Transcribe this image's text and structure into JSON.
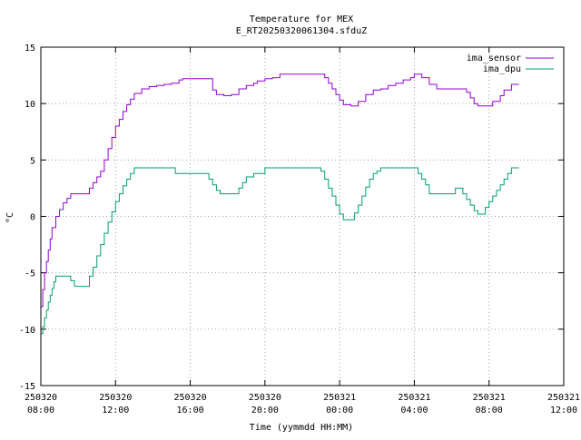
{
  "chart_data": {
    "type": "line",
    "title": "Temperature for MEX",
    "subtitle": "E_RT20250320061304.sfduZ",
    "xlabel": "Time (yymmdd HH:MM)",
    "ylabel": "°C",
    "x_unit": "hours since 250320 00:00",
    "xlim": [
      8,
      36
    ],
    "ylim": [
      -15,
      15
    ],
    "grid": true,
    "legend_position": "top-right",
    "x_ticks": [
      {
        "value": 8,
        "date": "250320",
        "time": "08:00"
      },
      {
        "value": 12,
        "date": "250320",
        "time": "12:00"
      },
      {
        "value": 16,
        "date": "250320",
        "time": "16:00"
      },
      {
        "value": 20,
        "date": "250320",
        "time": "20:00"
      },
      {
        "value": 24,
        "date": "250321",
        "time": "00:00"
      },
      {
        "value": 28,
        "date": "250321",
        "time": "04:00"
      },
      {
        "value": 32,
        "date": "250321",
        "time": "08:00"
      },
      {
        "value": 36,
        "date": "250321",
        "time": "12:00"
      }
    ],
    "y_ticks": [
      {
        "value": -15,
        "label": "-15"
      },
      {
        "value": -10,
        "label": "-10"
      },
      {
        "value": -5,
        "label": "-5"
      },
      {
        "value": 0,
        "label": "0"
      },
      {
        "value": 5,
        "label": "5"
      },
      {
        "value": 10,
        "label": "10"
      },
      {
        "value": 15,
        "label": "15"
      }
    ],
    "series": [
      {
        "name": "ima_sensor",
        "color": "#9400d3",
        "points": [
          [
            8.0,
            -8.0
          ],
          [
            8.1,
            -6.5
          ],
          [
            8.2,
            -5.0
          ],
          [
            8.3,
            -4.0
          ],
          [
            8.4,
            -3.0
          ],
          [
            8.5,
            -2.0
          ],
          [
            8.6,
            -1.0
          ],
          [
            8.8,
            0.0
          ],
          [
            9.0,
            0.6
          ],
          [
            9.2,
            1.2
          ],
          [
            9.4,
            1.6
          ],
          [
            9.6,
            2.0
          ],
          [
            10.0,
            2.0
          ],
          [
            10.4,
            2.0
          ],
          [
            10.6,
            2.5
          ],
          [
            10.8,
            3.0
          ],
          [
            11.0,
            3.5
          ],
          [
            11.2,
            4.0
          ],
          [
            11.4,
            5.0
          ],
          [
            11.6,
            6.0
          ],
          [
            11.8,
            7.0
          ],
          [
            12.0,
            8.0
          ],
          [
            12.2,
            8.6
          ],
          [
            12.4,
            9.3
          ],
          [
            12.6,
            9.9
          ],
          [
            12.8,
            10.4
          ],
          [
            13.0,
            10.9
          ],
          [
            13.4,
            11.3
          ],
          [
            13.8,
            11.5
          ],
          [
            14.2,
            11.6
          ],
          [
            14.6,
            11.7
          ],
          [
            15.0,
            11.8
          ],
          [
            15.4,
            12.1
          ],
          [
            15.6,
            12.2
          ],
          [
            16.0,
            12.2
          ],
          [
            16.4,
            12.2
          ],
          [
            16.8,
            12.2
          ],
          [
            17.2,
            11.2
          ],
          [
            17.4,
            10.8
          ],
          [
            17.8,
            10.7
          ],
          [
            18.2,
            10.8
          ],
          [
            18.6,
            11.3
          ],
          [
            19.0,
            11.6
          ],
          [
            19.4,
            11.8
          ],
          [
            19.6,
            12.0
          ],
          [
            20.0,
            12.2
          ],
          [
            20.4,
            12.3
          ],
          [
            20.8,
            12.6
          ],
          [
            21.4,
            12.6
          ],
          [
            22.0,
            12.6
          ],
          [
            22.6,
            12.6
          ],
          [
            23.0,
            12.6
          ],
          [
            23.2,
            12.3
          ],
          [
            23.4,
            11.8
          ],
          [
            23.6,
            11.3
          ],
          [
            23.8,
            10.8
          ],
          [
            24.0,
            10.3
          ],
          [
            24.2,
            9.9
          ],
          [
            24.6,
            9.8
          ],
          [
            24.8,
            9.8
          ],
          [
            25.0,
            10.2
          ],
          [
            25.4,
            10.8
          ],
          [
            25.8,
            11.2
          ],
          [
            26.2,
            11.3
          ],
          [
            26.6,
            11.6
          ],
          [
            27.0,
            11.8
          ],
          [
            27.4,
            12.1
          ],
          [
            27.8,
            12.3
          ],
          [
            28.0,
            12.6
          ],
          [
            28.2,
            12.6
          ],
          [
            28.4,
            12.3
          ],
          [
            28.8,
            11.7
          ],
          [
            29.2,
            11.3
          ],
          [
            29.6,
            11.3
          ],
          [
            30.0,
            11.3
          ],
          [
            30.4,
            11.3
          ],
          [
            30.8,
            11.0
          ],
          [
            31.0,
            10.5
          ],
          [
            31.2,
            10.0
          ],
          [
            31.4,
            9.8
          ],
          [
            31.8,
            9.8
          ],
          [
            32.2,
            10.2
          ],
          [
            32.6,
            10.7
          ],
          [
            32.8,
            11.2
          ],
          [
            33.2,
            11.7
          ],
          [
            33.6,
            11.7
          ]
        ]
      },
      {
        "name": "ima_dpu",
        "color": "#009e73",
        "points": [
          [
            8.0,
            -10.4
          ],
          [
            8.1,
            -9.8
          ],
          [
            8.2,
            -9.0
          ],
          [
            8.3,
            -8.3
          ],
          [
            8.4,
            -7.6
          ],
          [
            8.5,
            -7.0
          ],
          [
            8.6,
            -6.4
          ],
          [
            8.7,
            -5.8
          ],
          [
            8.8,
            -5.3
          ],
          [
            9.0,
            -5.3
          ],
          [
            9.2,
            -5.3
          ],
          [
            9.4,
            -5.3
          ],
          [
            9.6,
            -5.7
          ],
          [
            9.8,
            -6.2
          ],
          [
            10.0,
            -6.2
          ],
          [
            10.2,
            -6.2
          ],
          [
            10.4,
            -6.2
          ],
          [
            10.6,
            -5.3
          ],
          [
            10.8,
            -4.5
          ],
          [
            11.0,
            -3.5
          ],
          [
            11.2,
            -2.5
          ],
          [
            11.4,
            -1.5
          ],
          [
            11.6,
            -0.5
          ],
          [
            11.8,
            0.4
          ],
          [
            12.0,
            1.3
          ],
          [
            12.2,
            2.0
          ],
          [
            12.4,
            2.7
          ],
          [
            12.6,
            3.3
          ],
          [
            12.8,
            3.8
          ],
          [
            13.0,
            4.3
          ],
          [
            13.4,
            4.3
          ],
          [
            14.0,
            4.3
          ],
          [
            14.6,
            4.3
          ],
          [
            15.0,
            4.3
          ],
          [
            15.2,
            3.8
          ],
          [
            15.6,
            3.8
          ],
          [
            16.0,
            3.8
          ],
          [
            16.4,
            3.8
          ],
          [
            16.8,
            3.8
          ],
          [
            17.0,
            3.3
          ],
          [
            17.2,
            2.8
          ],
          [
            17.4,
            2.3
          ],
          [
            17.6,
            2.0
          ],
          [
            18.0,
            2.0
          ],
          [
            18.4,
            2.0
          ],
          [
            18.6,
            2.5
          ],
          [
            18.8,
            3.0
          ],
          [
            19.0,
            3.5
          ],
          [
            19.4,
            3.8
          ],
          [
            19.6,
            3.8
          ],
          [
            20.0,
            4.3
          ],
          [
            20.4,
            4.3
          ],
          [
            21.0,
            4.3
          ],
          [
            21.6,
            4.3
          ],
          [
            22.2,
            4.3
          ],
          [
            22.8,
            4.3
          ],
          [
            23.0,
            4.0
          ],
          [
            23.2,
            3.3
          ],
          [
            23.4,
            2.5
          ],
          [
            23.6,
            1.8
          ],
          [
            23.8,
            1.0
          ],
          [
            24.0,
            0.2
          ],
          [
            24.2,
            -0.3
          ],
          [
            24.6,
            -0.3
          ],
          [
            24.8,
            0.3
          ],
          [
            25.0,
            1.0
          ],
          [
            25.2,
            1.8
          ],
          [
            25.4,
            2.6
          ],
          [
            25.6,
            3.3
          ],
          [
            25.8,
            3.8
          ],
          [
            26.0,
            4.0
          ],
          [
            26.2,
            4.3
          ],
          [
            26.6,
            4.3
          ],
          [
            27.0,
            4.3
          ],
          [
            27.4,
            4.3
          ],
          [
            27.8,
            4.3
          ],
          [
            28.0,
            4.3
          ],
          [
            28.2,
            3.8
          ],
          [
            28.4,
            3.3
          ],
          [
            28.6,
            2.8
          ],
          [
            28.8,
            2.0
          ],
          [
            29.2,
            2.0
          ],
          [
            29.6,
            2.0
          ],
          [
            30.0,
            2.0
          ],
          [
            30.2,
            2.5
          ],
          [
            30.4,
            2.5
          ],
          [
            30.6,
            2.0
          ],
          [
            30.8,
            1.5
          ],
          [
            31.0,
            1.0
          ],
          [
            31.2,
            0.5
          ],
          [
            31.4,
            0.2
          ],
          [
            31.6,
            0.2
          ],
          [
            31.8,
            0.8
          ],
          [
            32.0,
            1.3
          ],
          [
            32.2,
            1.8
          ],
          [
            32.4,
            2.3
          ],
          [
            32.6,
            2.8
          ],
          [
            32.8,
            3.3
          ],
          [
            33.0,
            3.8
          ],
          [
            33.2,
            4.3
          ],
          [
            33.6,
            4.3
          ]
        ]
      }
    ]
  }
}
